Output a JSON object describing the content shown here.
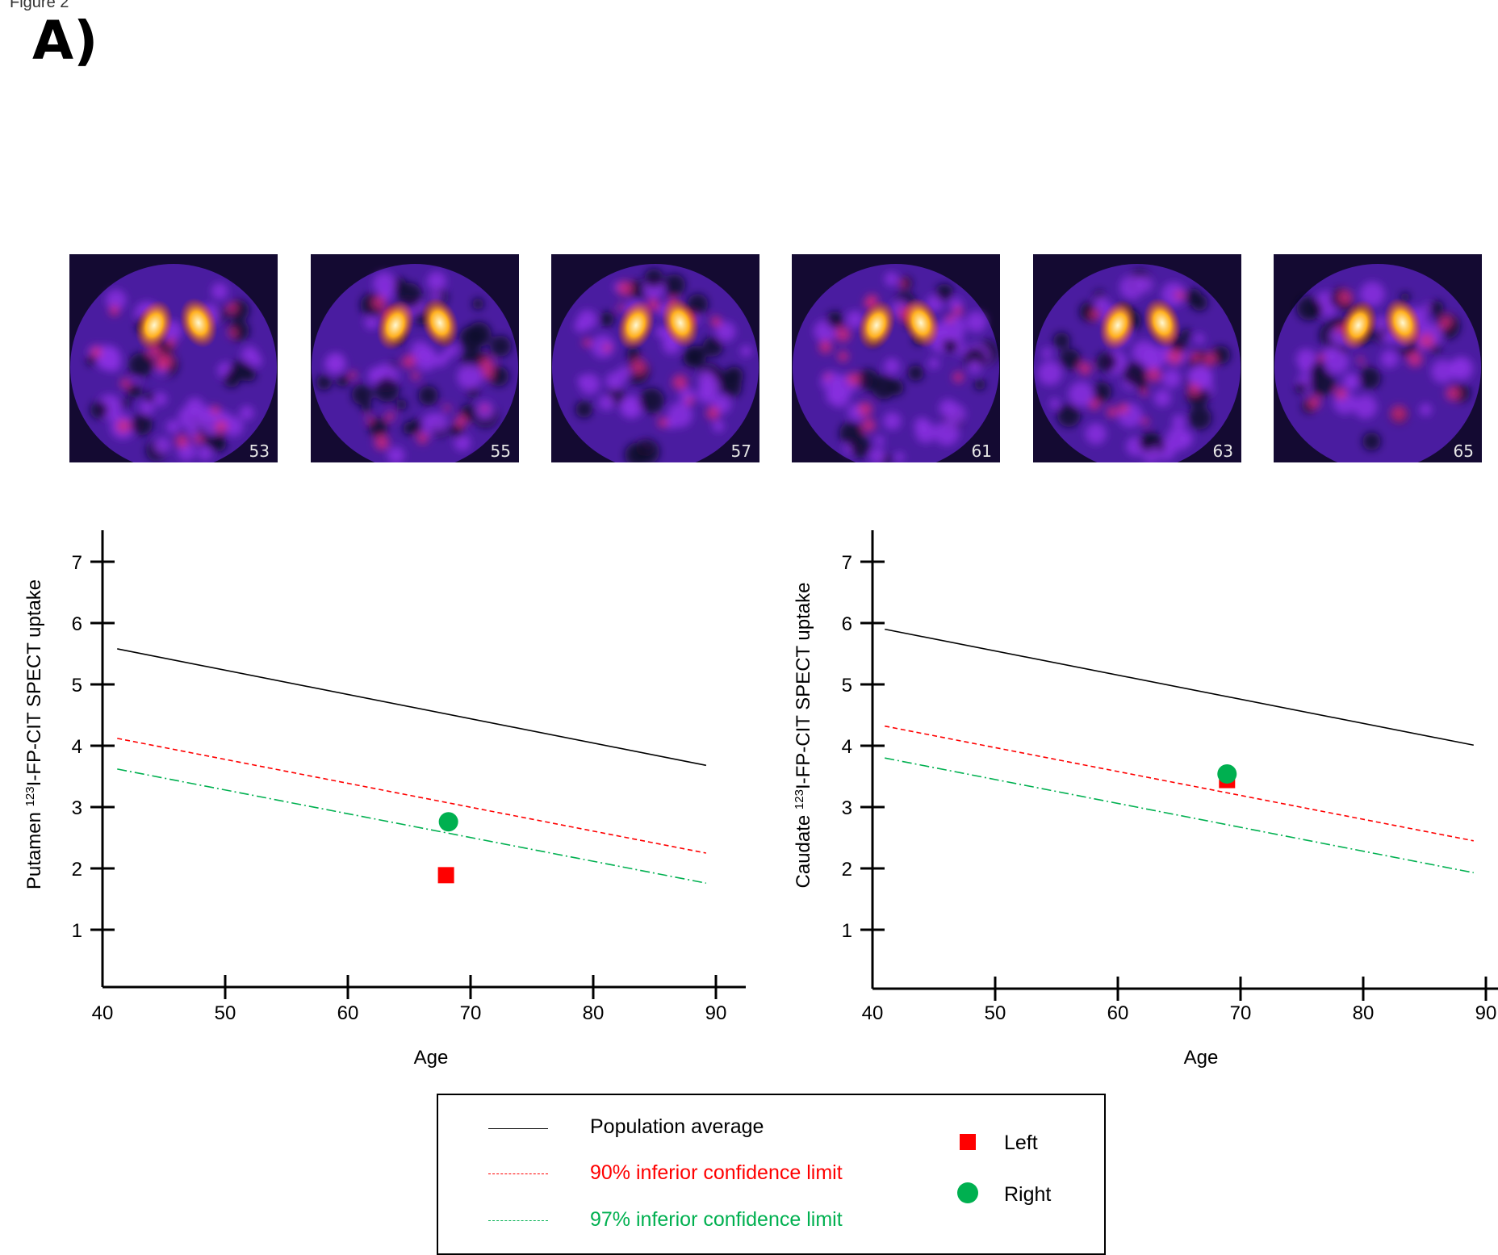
{
  "figure_caption": "Figure 2",
  "panel_label": "A)",
  "scans": [
    {
      "slice": "53"
    },
    {
      "slice": "55"
    },
    {
      "slice": "57"
    },
    {
      "slice": "61"
    },
    {
      "slice": "63"
    },
    {
      "slice": "65"
    }
  ],
  "colors": {
    "population": "#000000",
    "ci90": "#ff0000",
    "ci97": "#00b050",
    "left_marker": "#ff0000",
    "right_marker": "#00b050"
  },
  "chart_data": [
    {
      "type": "line",
      "xlabel": "Age",
      "ylabel_pre": "Putamen ",
      "ylabel_sup": "123",
      "ylabel_post": "I-FP-CIT SPECT uptake",
      "xlim": [
        40,
        92
      ],
      "ylim": [
        0.05,
        7.5
      ],
      "xticks": [
        40,
        50,
        60,
        70,
        80,
        90
      ],
      "yticks": [
        1,
        2,
        3,
        4,
        5,
        6,
        7
      ],
      "lines": [
        {
          "name": "Population average",
          "x": [
            41.2,
            89.2
          ],
          "y": [
            5.58,
            3.68
          ]
        },
        {
          "name": "90% inferior confidence limit",
          "x": [
            41.2,
            89.2
          ],
          "y": [
            4.12,
            2.25
          ]
        },
        {
          "name": "97% inferior confidence limit",
          "x": [
            41.2,
            89.2
          ],
          "y": [
            3.62,
            1.76
          ]
        }
      ],
      "points": [
        {
          "name": "Left",
          "x": 68.0,
          "y": 1.89
        },
        {
          "name": "Right",
          "x": 68.2,
          "y": 2.76
        }
      ]
    },
    {
      "type": "line",
      "xlabel": "Age",
      "ylabel_pre": "Caudate ",
      "ylabel_sup": "123",
      "ylabel_post": "I-FP-CIT SPECT uptake",
      "xlim": [
        40,
        92
      ],
      "ylim": [
        0.05,
        7.5
      ],
      "xticks": [
        40,
        50,
        60,
        70,
        80,
        90
      ],
      "yticks": [
        1,
        2,
        3,
        4,
        5,
        6,
        7
      ],
      "lines": [
        {
          "name": "Population average",
          "x": [
            41.0,
            89.0
          ],
          "y": [
            5.9,
            4.01
          ]
        },
        {
          "name": "90% inferior confidence limit",
          "x": [
            41.0,
            89.0
          ],
          "y": [
            4.32,
            2.45
          ]
        },
        {
          "name": "97% inferior confidence limit",
          "x": [
            41.0,
            89.0
          ],
          "y": [
            3.8,
            1.93
          ]
        }
      ],
      "points": [
        {
          "name": "Left",
          "x": 68.9,
          "y": 3.44
        },
        {
          "name": "Right",
          "x": 68.9,
          "y": 3.54
        }
      ]
    }
  ],
  "legend": {
    "population": "Population average",
    "ci90": "90% inferior confidence limit",
    "ci97": "97% inferior confidence limit",
    "left": "Left",
    "right": "Right"
  }
}
